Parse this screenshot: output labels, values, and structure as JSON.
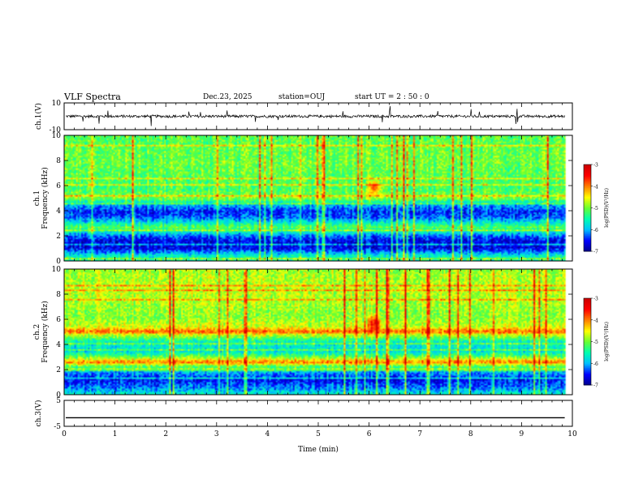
{
  "header": {
    "title": "VLF Spectra",
    "date": "Dec.23, 2025",
    "station": "station=OUJ",
    "start": "start UT =  2 : 50 : 0"
  },
  "colors": {
    "axis": "#000000",
    "trace": "#000000",
    "colormap": [
      "#00008b",
      "#0000ff",
      "#00bfff",
      "#00ffb0",
      "#66ff33",
      "#ffff00",
      "#ff8000",
      "#ff0000",
      "#cc0000"
    ]
  },
  "chart_data": [
    {
      "panel": "ch1-waveform",
      "type": "line",
      "ylabel": "ch.1(V)",
      "ylim": [
        -10,
        10
      ],
      "yticks": [
        "10",
        "-10"
      ],
      "xlim": [
        0,
        10
      ],
      "trace_level": 0,
      "trace_noise_amplitude": 1
    },
    {
      "panel": "ch1-spectrogram",
      "type": "heatmap",
      "ylabel_top": "ch.1",
      "ylabel": "Frequency (kHz)",
      "ylim": [
        0,
        10
      ],
      "yticks": [
        "0",
        "2",
        "4",
        "6",
        "8",
        "10"
      ],
      "xlim": [
        0,
        10
      ],
      "data_end_min": 9.85,
      "colorbar_label": "log(PSD)(V²/Hz)",
      "colorbar_range": [
        -7,
        -3
      ],
      "colorbar_ticks": [
        "-3",
        "-4",
        "-5",
        "-6",
        "-7"
      ],
      "band_profile": [
        {
          "f": 0.0,
          "v": -5.4
        },
        {
          "f": 0.4,
          "v": -5.6
        },
        {
          "f": 1.0,
          "v": -6.6
        },
        {
          "f": 1.6,
          "v": -6.6
        },
        {
          "f": 2.0,
          "v": -6.2
        },
        {
          "f": 2.4,
          "v": -5.5
        },
        {
          "f": 2.7,
          "v": -5.1
        },
        {
          "f": 3.0,
          "v": -5.6
        },
        {
          "f": 3.5,
          "v": -6.3
        },
        {
          "f": 4.0,
          "v": -6.4
        },
        {
          "f": 4.5,
          "v": -5.9
        },
        {
          "f": 5.0,
          "v": -4.9
        },
        {
          "f": 5.3,
          "v": -5.0
        },
        {
          "f": 5.7,
          "v": -5.2
        },
        {
          "f": 6.5,
          "v": -5.1
        },
        {
          "f": 8.0,
          "v": -5.0
        },
        {
          "f": 10.0,
          "v": -5.1
        }
      ],
      "event": {
        "t": 6.1,
        "f": 5.8,
        "v": -3.8
      }
    },
    {
      "panel": "ch2-spectrogram",
      "type": "heatmap",
      "ylabel_top": "ch.2",
      "ylabel": "Frequency (kHz)",
      "ylim": [
        0,
        10
      ],
      "yticks": [
        "0",
        "2",
        "4",
        "6",
        "8",
        "10"
      ],
      "xlim": [
        0,
        10
      ],
      "data_end_min": 9.85,
      "colorbar_label": "log(PSD)(V²/Hz)",
      "colorbar_range": [
        -7,
        -3
      ],
      "colorbar_ticks": [
        "-3",
        "-4",
        "-5",
        "-6",
        "-7"
      ],
      "band_profile": [
        {
          "f": 0.0,
          "v": -5.6
        },
        {
          "f": 0.6,
          "v": -6.2
        },
        {
          "f": 1.2,
          "v": -6.5
        },
        {
          "f": 1.8,
          "v": -6.0
        },
        {
          "f": 2.3,
          "v": -5.0
        },
        {
          "f": 2.6,
          "v": -3.9
        },
        {
          "f": 2.9,
          "v": -4.8
        },
        {
          "f": 3.4,
          "v": -5.7
        },
        {
          "f": 4.2,
          "v": -5.6
        },
        {
          "f": 4.8,
          "v": -4.6
        },
        {
          "f": 5.0,
          "v": -3.8
        },
        {
          "f": 5.4,
          "v": -4.6
        },
        {
          "f": 6.2,
          "v": -4.9
        },
        {
          "f": 8.0,
          "v": -4.7
        },
        {
          "f": 10.0,
          "v": -4.8
        }
      ],
      "event": {
        "t": 6.1,
        "f": 5.6,
        "v": -3.3
      }
    },
    {
      "panel": "ch3-waveform",
      "type": "line",
      "ylabel": "ch.3(V)",
      "ylim": [
        -5,
        5
      ],
      "yticks": [
        "5",
        "-5"
      ],
      "xlim": [
        0,
        10
      ],
      "trace_level": -1.7,
      "trace_noise_amplitude": 0
    }
  ],
  "xaxis": {
    "label": "Time (min)",
    "ticks": [
      "0",
      "1",
      "2",
      "3",
      "4",
      "5",
      "6",
      "7",
      "8",
      "9",
      "10"
    ]
  }
}
